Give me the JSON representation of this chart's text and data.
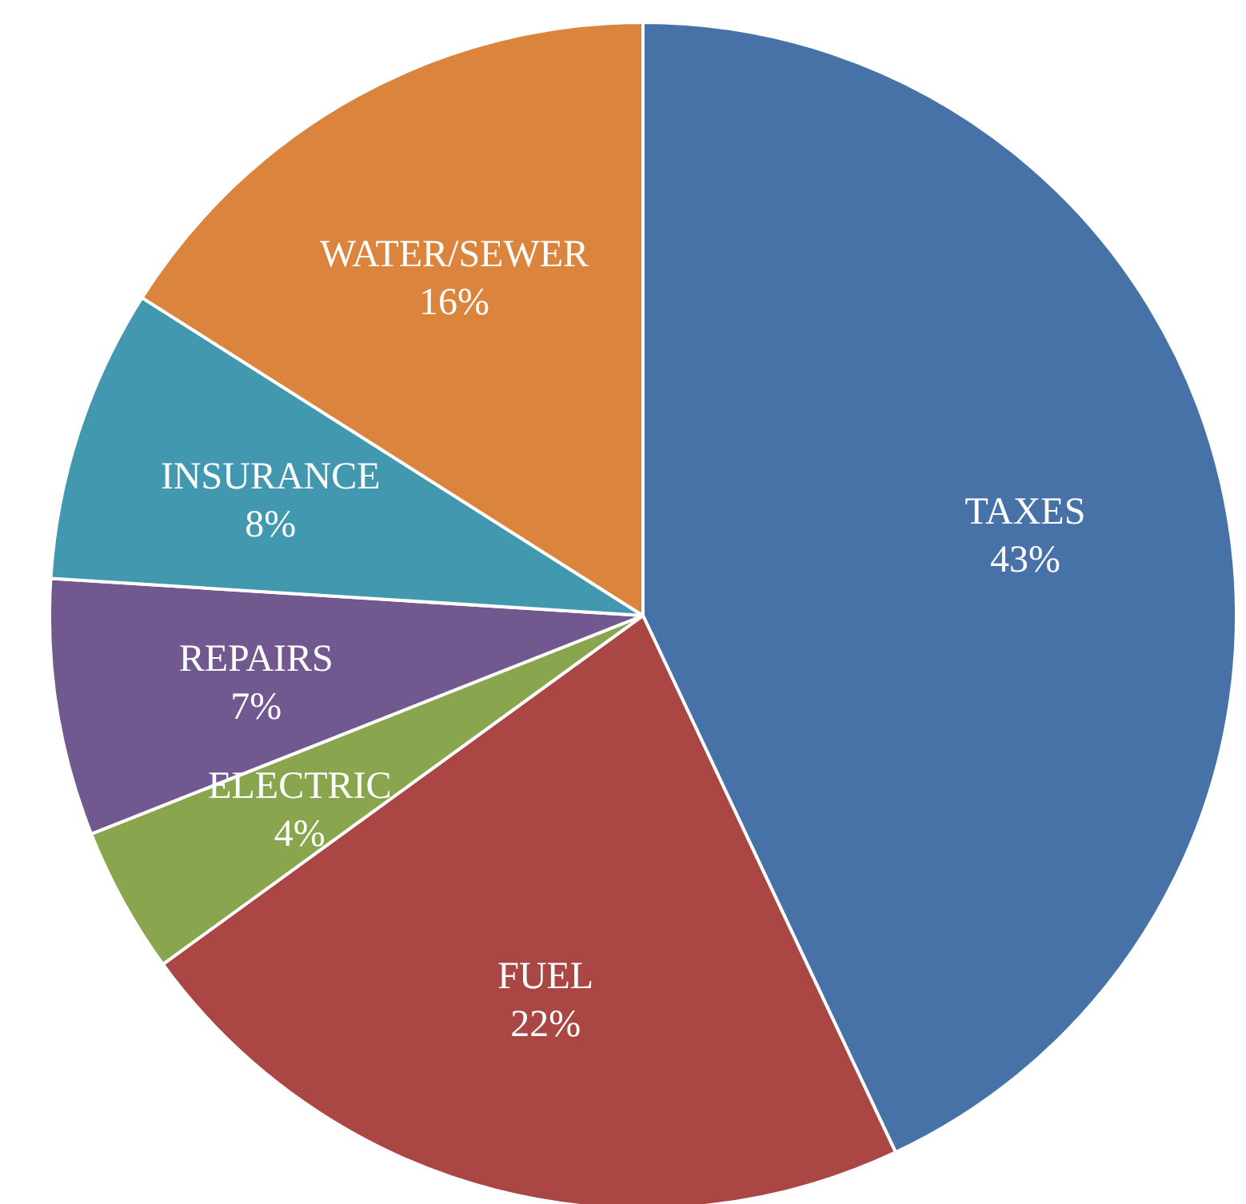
{
  "chart_data": {
    "type": "pie",
    "categories": [
      "TAXES",
      "FUEL",
      "ELECTRIC",
      "REPAIRS",
      "INSURANCE",
      "WATER/SEWER"
    ],
    "values": [
      43,
      22,
      4,
      7,
      8,
      16
    ],
    "value_labels": [
      "43%",
      "22%",
      "4%",
      "7%",
      "8%",
      "16%"
    ],
    "colors": [
      "#4672a8",
      "#aa4644",
      "#89a54e",
      "#71588f",
      "#4198af",
      "#db843d"
    ],
    "legend": false
  }
}
